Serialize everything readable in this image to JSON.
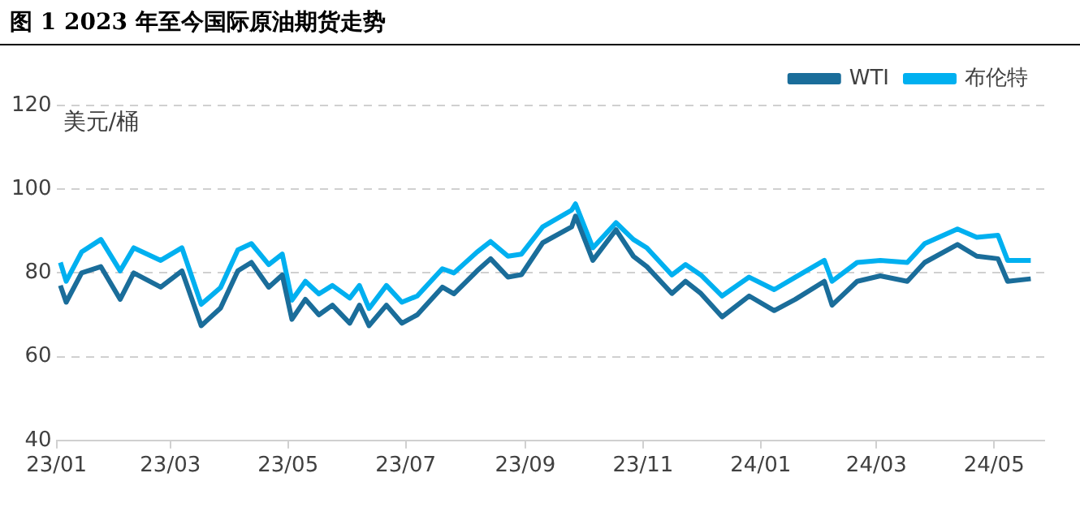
{
  "chart_data": {
    "type": "line",
    "title": "图 1 2023 年至今国际原油期货走势",
    "ylabel": "美元/桶",
    "x": [
      "2023-01-03",
      "2023-01-06",
      "2023-01-14",
      "2023-01-24",
      "2023-02-03",
      "2023-02-10",
      "2023-02-24",
      "2023-03-07",
      "2023-03-17",
      "2023-03-27",
      "2023-04-05",
      "2023-04-12",
      "2023-04-21",
      "2023-04-28",
      "2023-05-03",
      "2023-05-10",
      "2023-05-17",
      "2023-05-24",
      "2023-06-02",
      "2023-06-07",
      "2023-06-12",
      "2023-06-21",
      "2023-06-29",
      "2023-07-07",
      "2023-07-20",
      "2023-07-26",
      "2023-08-07",
      "2023-08-14",
      "2023-08-23",
      "2023-08-30",
      "2023-09-10",
      "2023-09-25",
      "2023-09-27",
      "2023-10-06",
      "2023-10-18",
      "2023-10-27",
      "2023-11-03",
      "2023-11-16",
      "2023-11-23",
      "2023-12-01",
      "2023-12-12",
      "2023-12-26",
      "2024-01-08",
      "2024-01-19",
      "2024-02-03",
      "2024-02-07",
      "2024-02-20",
      "2024-03-03",
      "2024-03-17",
      "2024-03-26",
      "2024-04-12",
      "2024-04-22",
      "2024-05-03",
      "2024-05-08",
      "2024-05-20"
    ],
    "series": [
      {
        "name": "WTI",
        "color": "#1a6d9a",
        "values": [
          77,
          73,
          80,
          81.5,
          73.7,
          80,
          76.6,
          80.5,
          67.4,
          71.6,
          80.5,
          82.5,
          76.6,
          79.5,
          68.9,
          73.7,
          70,
          72.3,
          68,
          72.3,
          67.4,
          72.3,
          68,
          70,
          76.6,
          75,
          80.5,
          83.4,
          79,
          79.6,
          87.2,
          91,
          93.6,
          83,
          90.3,
          84,
          81.5,
          75.1,
          78,
          75.1,
          69.5,
          74.5,
          71,
          73.7,
          78,
          72.3,
          78,
          79.3,
          78,
          82.5,
          86.8,
          84,
          83.4,
          78,
          78.6
        ]
      },
      {
        "name": "布伦特",
        "color": "#00b0f0",
        "values": [
          82.5,
          78,
          85,
          88,
          80.5,
          86,
          83,
          86,
          72.5,
          76.5,
          85.5,
          87,
          82,
          84.5,
          73.5,
          78,
          75,
          77,
          74,
          77,
          71.5,
          77,
          73,
          74.5,
          81,
          80,
          85,
          87.5,
          84,
          84.5,
          91,
          95,
          96.5,
          86,
          92,
          88,
          86,
          79.5,
          82,
          79.5,
          74.5,
          79,
          76,
          79,
          83,
          78,
          82.5,
          83,
          82.5,
          87,
          90.5,
          88.5,
          89,
          83,
          83
        ]
      }
    ],
    "xlim": [
      "2023-01-01",
      "2024-05-27"
    ],
    "xticks": [
      {
        "value": "2023-01",
        "label": "23/01"
      },
      {
        "value": "2023-03",
        "label": "23/03"
      },
      {
        "value": "2023-05",
        "label": "23/05"
      },
      {
        "value": "2023-07",
        "label": "23/07"
      },
      {
        "value": "2023-09",
        "label": "23/09"
      },
      {
        "value": "2023-11",
        "label": "23/11"
      },
      {
        "value": "2024-01",
        "label": "24/01"
      },
      {
        "value": "2024-03",
        "label": "24/03"
      },
      {
        "value": "2024-05",
        "label": "24/05"
      }
    ],
    "ylim": [
      40,
      120
    ],
    "yticks": [
      40,
      60,
      80,
      100,
      120
    ],
    "grid": "y",
    "legend": "top right",
    "marker": "none",
    "line_style": "solid"
  }
}
